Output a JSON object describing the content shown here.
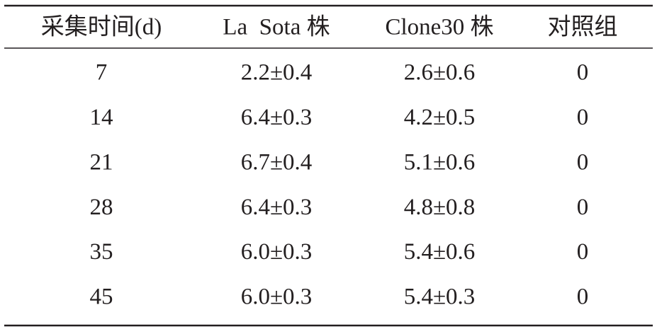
{
  "table": {
    "header": [
      "采集时间(d)",
      "La  Sota 株",
      "Clone30 株",
      "对照组"
    ],
    "rows": [
      [
        "7",
        "2.2±0.4",
        "2.6±0.6",
        "0"
      ],
      [
        "14",
        "6.4±0.3",
        "4.2±0.5",
        "0"
      ],
      [
        "21",
        "6.7±0.4",
        "5.1±0.6",
        "0"
      ],
      [
        "28",
        "6.4±0.3",
        "4.8±0.8",
        "0"
      ],
      [
        "35",
        "6.0±0.3",
        "5.4±0.6",
        "0"
      ],
      [
        "45",
        "6.0±0.3",
        "5.4±0.3",
        "0"
      ]
    ]
  }
}
